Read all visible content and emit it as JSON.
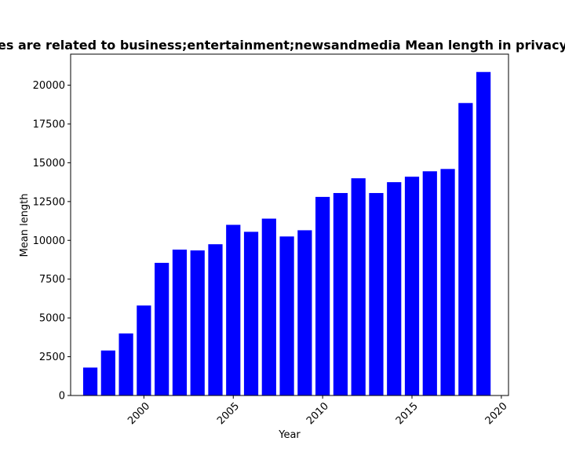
{
  "chart_data": {
    "type": "bar",
    "title": "Mean length of privacy policies of websites that are related to business;entertainment;newsandmedia Mean length in privacy policies",
    "title_visible": "es are related to business;entertainment;newsandmedia Mean length in privacy",
    "xlabel": "Year",
    "ylabel": "Mean length",
    "x": [
      1997,
      1998,
      1999,
      2000,
      2001,
      2002,
      2003,
      2004,
      2005,
      2006,
      2007,
      2008,
      2009,
      2010,
      2011,
      2012,
      2013,
      2014,
      2015,
      2016,
      2017,
      2018,
      2019
    ],
    "values": [
      1800,
      2900,
      4000,
      5800,
      8550,
      9400,
      9350,
      9750,
      11000,
      10550,
      11400,
      10250,
      10650,
      12800,
      13050,
      14000,
      13050,
      13750,
      14100,
      14450,
      14600,
      18850,
      20850
    ],
    "bar_color": "#0000ff",
    "xlim": [
      1995.9,
      2020.4
    ],
    "ylim": [
      0,
      22000
    ],
    "xticks": [
      "2000",
      "2005",
      "2010",
      "2015",
      "2020"
    ],
    "yticks": [
      "0",
      "2500",
      "5000",
      "7500",
      "10000",
      "12500",
      "15000",
      "17500",
      "20000"
    ],
    "grid": false,
    "legend": "none"
  }
}
